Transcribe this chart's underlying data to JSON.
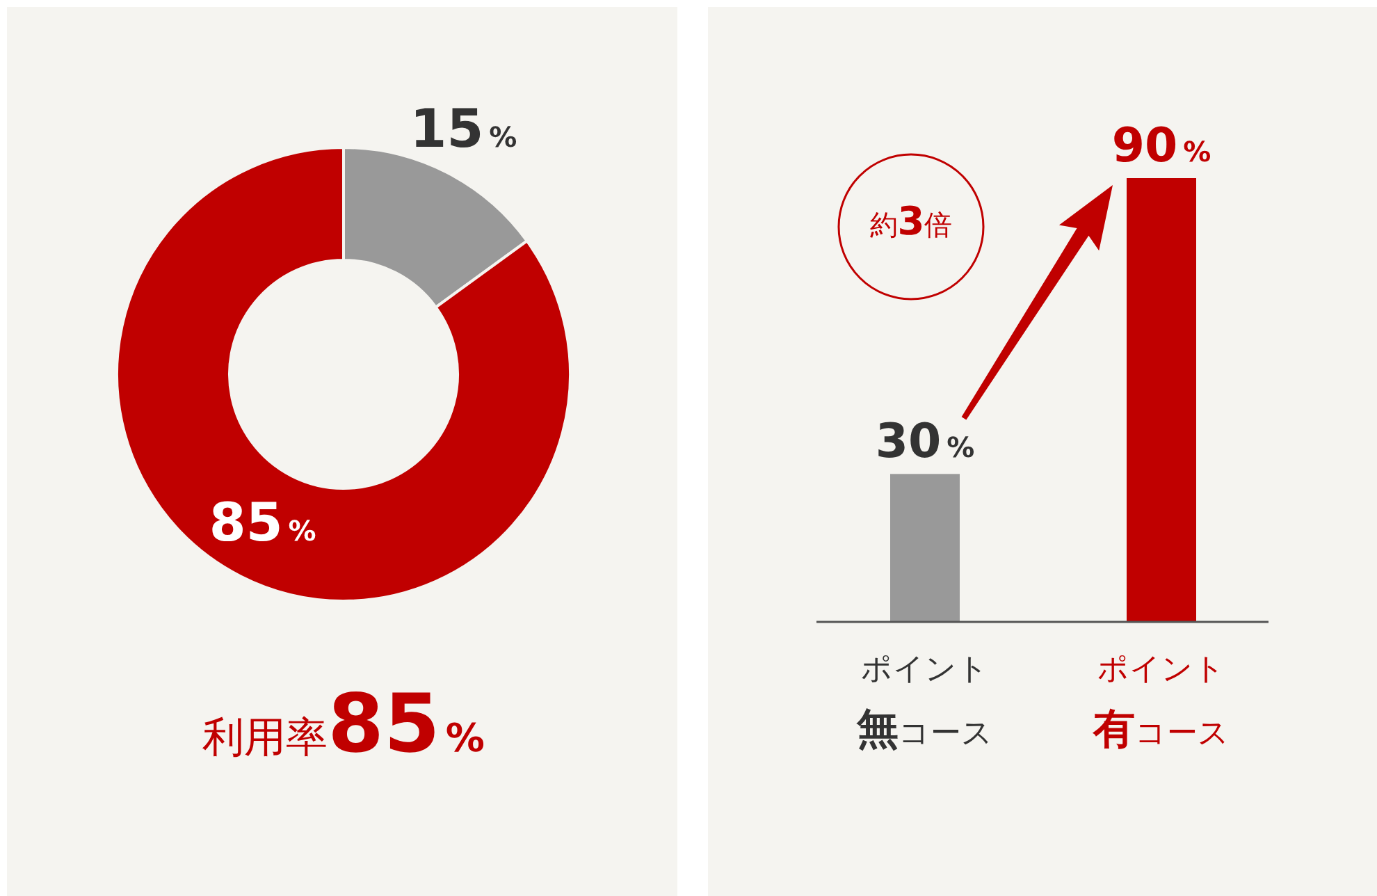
{
  "chart_data": [
    {
      "type": "donut",
      "categories": [
        null,
        null
      ],
      "values": [
        15,
        85
      ],
      "colors": [
        "#999999",
        "#c00000"
      ],
      "value_labels": [
        "15%",
        "85%"
      ],
      "title": "利用率85%"
    },
    {
      "type": "bar",
      "categories": [
        "ポイント無コース",
        "ポイント有コース"
      ],
      "values": [
        30,
        90
      ],
      "colors": [
        "#999999",
        "#c00000"
      ],
      "value_labels": [
        "30%",
        "90%"
      ],
      "annotations": [
        "約3倍"
      ]
    }
  ]
}
